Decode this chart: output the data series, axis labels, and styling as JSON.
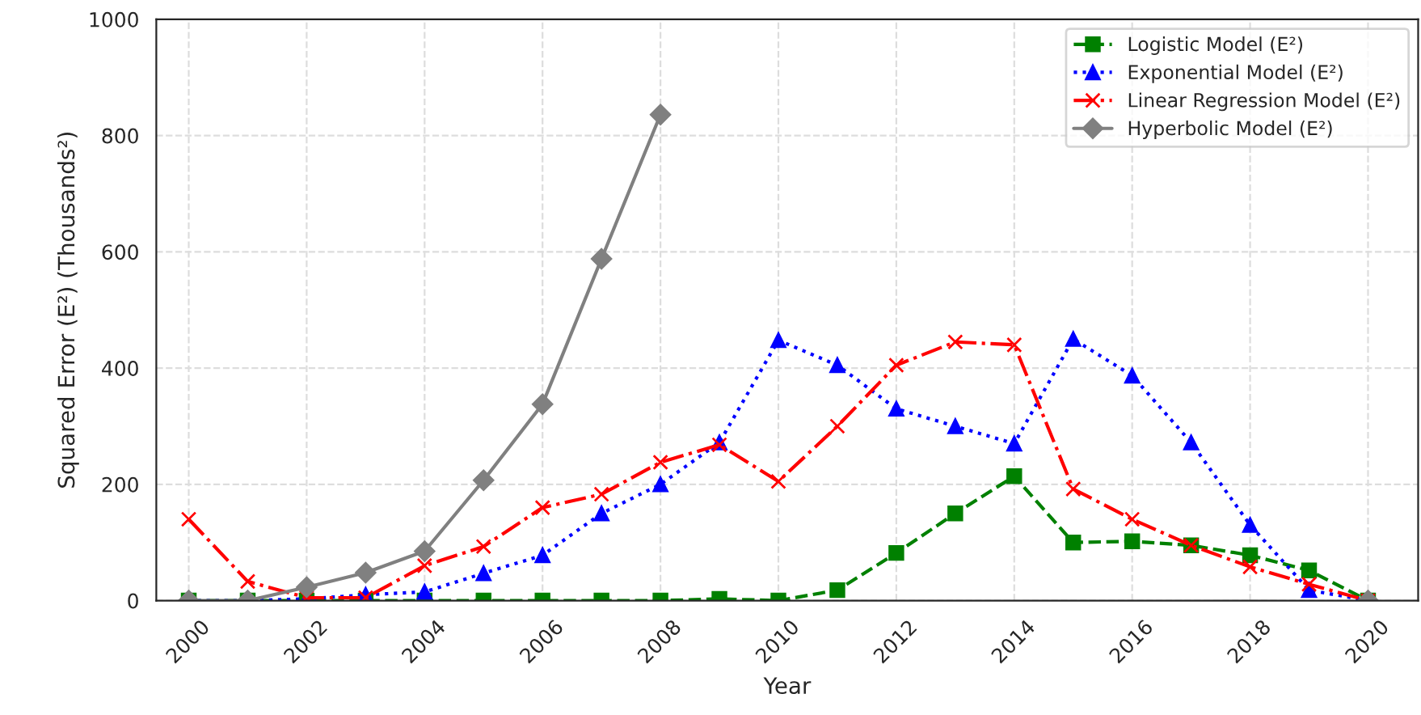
{
  "chart_data": {
    "type": "line",
    "xlabel": "Year",
    "ylabel": "Squared Error (E²) (Thousands²)",
    "x": [
      2000,
      2001,
      2002,
      2003,
      2004,
      2005,
      2006,
      2007,
      2008,
      2009,
      2010,
      2011,
      2012,
      2013,
      2014,
      2015,
      2016,
      2017,
      2018,
      2019,
      2020
    ],
    "series": [
      {
        "name": "Logistic Model (E²)",
        "color": "#008000",
        "marker": "square",
        "line_style": "dashed",
        "values": [
          0,
          0,
          0,
          0,
          0,
          0,
          0,
          0,
          0,
          3,
          0,
          18,
          82,
          150,
          214,
          100,
          102,
          95,
          78,
          52,
          0
        ]
      },
      {
        "name": "Exponential Model (E²)",
        "color": "#0000ff",
        "marker": "triangle",
        "line_style": "dotted",
        "values": [
          0,
          0,
          3,
          10,
          15,
          47,
          78,
          150,
          200,
          272,
          448,
          405,
          330,
          300,
          270,
          450,
          387,
          272,
          130,
          18,
          0
        ]
      },
      {
        "name": "Linear Regression Model (E²)",
        "color": "#ff0000",
        "marker": "cross",
        "line_style": "dashdot",
        "values": [
          140,
          33,
          5,
          5,
          60,
          93,
          160,
          183,
          238,
          268,
          205,
          300,
          405,
          445,
          440,
          192,
          140,
          95,
          58,
          28,
          0
        ]
      },
      {
        "name": "Hyperbolic Model (E²)",
        "color": "#808080",
        "marker": "diamond",
        "line_style": "solid",
        "values": [
          0,
          0,
          23,
          48,
          85,
          207,
          338,
          588,
          836,
          null,
          null,
          null,
          null,
          null,
          null,
          null,
          null,
          null,
          null,
          null,
          0
        ]
      }
    ],
    "xlim": [
      1999.45,
      2020.85
    ],
    "xticks": [
      2000,
      2002,
      2004,
      2006,
      2008,
      2010,
      2012,
      2014,
      2016,
      2018,
      2020
    ],
    "ylim": [
      0,
      1000
    ],
    "yticks": [
      0,
      200,
      400,
      600,
      800,
      1000
    ],
    "grid": true,
    "legend": "top right"
  }
}
